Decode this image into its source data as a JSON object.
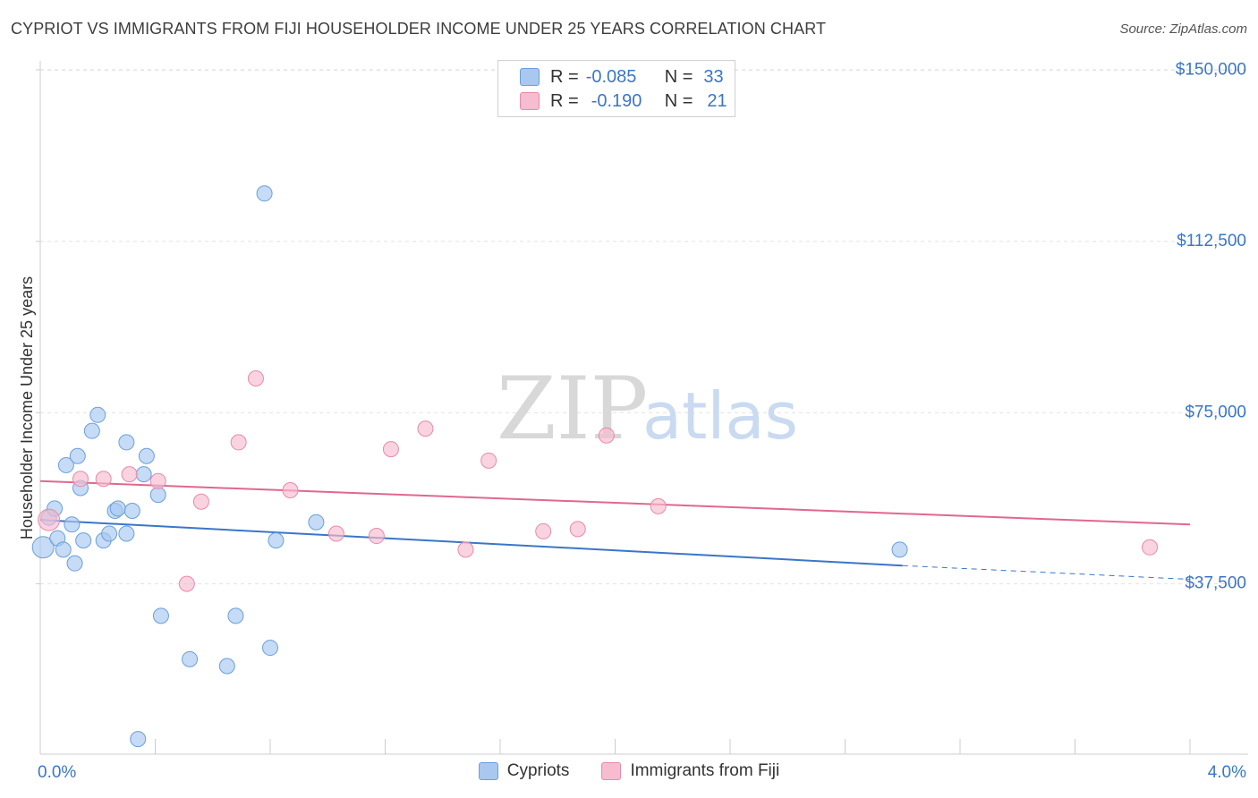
{
  "title": "CYPRIOT VS IMMIGRANTS FROM FIJI HOUSEHOLDER INCOME UNDER 25 YEARS CORRELATION CHART",
  "source": "Source: ZipAtlas.com",
  "watermark": {
    "zip": "ZIP",
    "atlas": "atlas"
  },
  "legend": {
    "rows": [
      {
        "r_label": "R =",
        "r_value": "-0.085",
        "n_label": "N =",
        "n_value": "33",
        "color": "#a8c8f0",
        "border": "#6a9fdc"
      },
      {
        "r_label": "R =",
        "r_value": "-0.190",
        "n_label": "N =",
        "n_value": "21",
        "color": "#f7bccf",
        "border": "#e88aa8"
      }
    ]
  },
  "bottom_legend": [
    {
      "label": "Cypriots",
      "color": "#a8c8f0",
      "border": "#6a9fdc"
    },
    {
      "label": "Immigrants from Fiji",
      "color": "#f7bccf",
      "border": "#e88aa8"
    }
  ],
  "chart_data": {
    "type": "scatter",
    "title": "CYPRIOT VS IMMIGRANTS FROM FIJI HOUSEHOLDER INCOME UNDER 25 YEARS CORRELATION CHART",
    "xlabel": "",
    "ylabel": "Householder Income Under 25 years",
    "xlim": [
      0,
      4
    ],
    "ylim": [
      0,
      155000
    ],
    "x_tick_labels": [
      "0.0%",
      "4.0%"
    ],
    "y_ticks": [
      37500,
      75000,
      112500,
      150000
    ],
    "y_tick_labels": [
      "$37,500",
      "$75,000",
      "$112,500",
      "$150,000"
    ],
    "grid": true,
    "series": [
      {
        "name": "Cypriots",
        "color": "#a8c8f0",
        "stroke": "#6a9fdc",
        "line_color": "#3a76c8",
        "trend": {
          "x0": 0.0,
          "y0": 51500,
          "x1": 3.0,
          "y1": 41500,
          "dash_to_x": 4.0,
          "dash_to_y": 38500
        },
        "points": [
          [
            0.01,
            45500
          ],
          [
            0.03,
            52000
          ],
          [
            0.05,
            54000
          ],
          [
            0.06,
            47500
          ],
          [
            0.08,
            45000
          ],
          [
            0.09,
            63500
          ],
          [
            0.11,
            50500
          ],
          [
            0.12,
            42000
          ],
          [
            0.13,
            65500
          ],
          [
            0.14,
            58500
          ],
          [
            0.15,
            47000
          ],
          [
            0.18,
            71000
          ],
          [
            0.2,
            74500
          ],
          [
            0.22,
            47000
          ],
          [
            0.24,
            48500
          ],
          [
            0.26,
            53500
          ],
          [
            0.27,
            54000
          ],
          [
            0.3,
            48500
          ],
          [
            0.3,
            68500
          ],
          [
            0.32,
            53500
          ],
          [
            0.36,
            61500
          ],
          [
            0.37,
            65500
          ],
          [
            0.41,
            57000
          ],
          [
            0.42,
            30500
          ],
          [
            0.52,
            21000
          ],
          [
            0.65,
            19500
          ],
          [
            0.68,
            30500
          ],
          [
            0.78,
            123000
          ],
          [
            0.8,
            23500
          ],
          [
            0.82,
            47000
          ],
          [
            0.96,
            51000
          ],
          [
            0.34,
            3500
          ],
          [
            2.99,
            45000
          ]
        ]
      },
      {
        "name": "Immigrants from Fiji",
        "color": "#f7bccf",
        "stroke": "#e88aa8",
        "line_color": "#e0688e",
        "trend": {
          "x0": 0.0,
          "y0": 60000,
          "x1": 4.0,
          "y1": 50500
        },
        "points": [
          [
            0.03,
            51500
          ],
          [
            0.14,
            60500
          ],
          [
            0.22,
            60500
          ],
          [
            0.31,
            61500
          ],
          [
            0.41,
            60000
          ],
          [
            0.51,
            37500
          ],
          [
            0.56,
            55500
          ],
          [
            0.69,
            68500
          ],
          [
            0.75,
            82500
          ],
          [
            0.87,
            58000
          ],
          [
            1.03,
            48500
          ],
          [
            1.17,
            48000
          ],
          [
            1.22,
            67000
          ],
          [
            1.34,
            71500
          ],
          [
            1.48,
            45000
          ],
          [
            1.56,
            64500
          ],
          [
            1.75,
            49000
          ],
          [
            1.87,
            49500
          ],
          [
            1.97,
            70000
          ],
          [
            2.15,
            54500
          ],
          [
            3.86,
            45500
          ]
        ]
      }
    ]
  }
}
